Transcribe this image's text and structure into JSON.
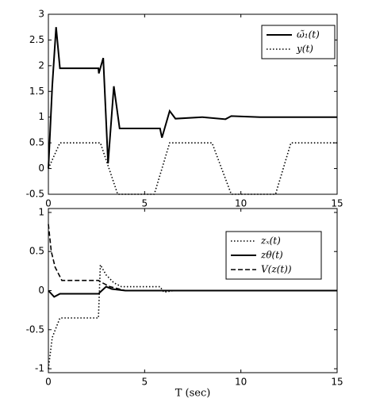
{
  "chart_data": [
    {
      "type": "line",
      "xlim": [
        0,
        15
      ],
      "ylim": [
        -0.5,
        3
      ],
      "xticks": [
        0,
        5,
        10,
        15
      ],
      "yticks": [
        -0.5,
        0,
        0.5,
        1,
        1.5,
        2,
        2.5,
        3
      ],
      "legend": "upper right",
      "series": [
        {
          "name": "ω̃₁(t)",
          "color": "#000000",
          "style": "solid",
          "x": [
            0,
            0.2,
            0.4,
            0.6,
            1.5,
            2.6,
            2.62,
            2.85,
            3.1,
            3.4,
            3.7,
            5.8,
            5.9,
            6.3,
            6.6,
            8,
            9.2,
            9.5,
            11,
            15
          ],
          "values": [
            0,
            1.6,
            2.75,
            1.95,
            1.95,
            1.95,
            1.85,
            2.15,
            0.1,
            1.6,
            0.78,
            0.78,
            0.6,
            1.12,
            0.97,
            1.0,
            0.96,
            1.02,
            1.0,
            1.0
          ]
        },
        {
          "name": "y(t)",
          "color": "#000000",
          "style": "dotted",
          "x": [
            0,
            0.6,
            2.7,
            3.6,
            5.5,
            6.3,
            8.5,
            9.5,
            11.8,
            12.6,
            15
          ],
          "values": [
            0,
            0.5,
            0.5,
            -0.5,
            -0.5,
            0.5,
            0.5,
            -0.5,
            -0.5,
            0.5,
            0.5
          ]
        }
      ]
    },
    {
      "type": "line",
      "xlim": [
        0,
        15
      ],
      "ylim": [
        -1.05,
        1.05
      ],
      "xticks": [
        0,
        5,
        10,
        15
      ],
      "yticks": [
        -1,
        -0.5,
        0,
        0.5,
        1
      ],
      "xlabel": "T (sec)",
      "legend": "upper right",
      "series": [
        {
          "name": "zₓ(t)",
          "color": "#000000",
          "style": "dotted",
          "x": [
            0,
            0.2,
            0.6,
            2.6,
            2.7,
            3.0,
            3.4,
            3.8,
            5.8,
            6.0,
            6.5,
            15
          ],
          "values": [
            -1,
            -0.6,
            -0.35,
            -0.35,
            0.33,
            0.2,
            0.1,
            0.05,
            0.05,
            -0.02,
            0,
            0
          ]
        },
        {
          "name": "zθ(t)",
          "color": "#000000",
          "style": "solid",
          "x": [
            0,
            0.3,
            0.6,
            2.6,
            3.0,
            3.3,
            4,
            15
          ],
          "values": [
            0,
            -0.08,
            -0.04,
            -0.04,
            0.05,
            0.02,
            0,
            0
          ]
        },
        {
          "name": "V(z(t))",
          "color": "#000000",
          "style": "dashed",
          "x": [
            0,
            0.15,
            0.35,
            0.7,
            2.6,
            2.8,
            3.2,
            4,
            15
          ],
          "values": [
            0.85,
            0.5,
            0.3,
            0.13,
            0.13,
            0.1,
            0.05,
            0,
            0
          ]
        }
      ]
    }
  ]
}
